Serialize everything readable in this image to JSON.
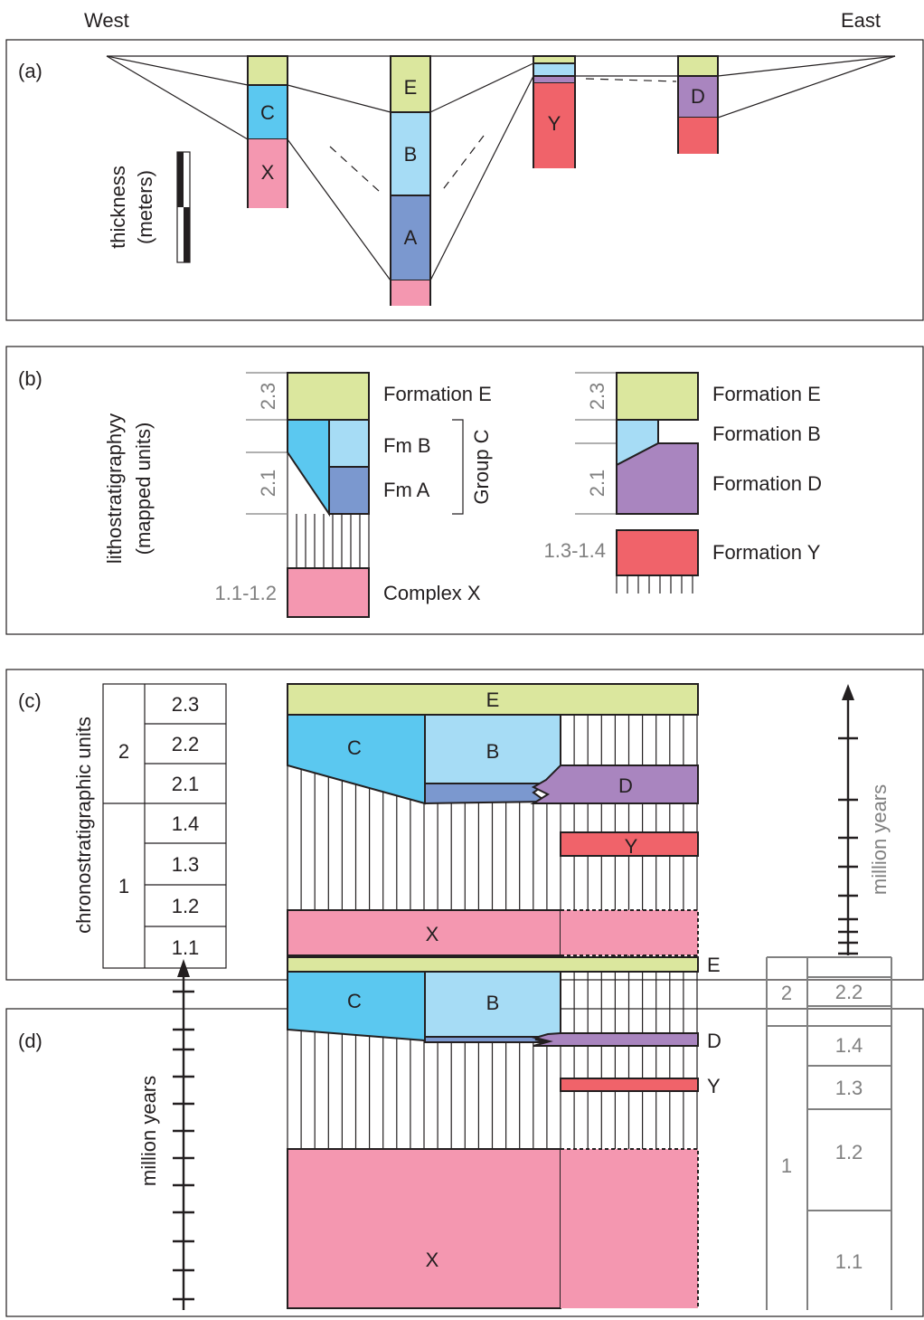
{
  "header": {
    "west": "West",
    "east": "East"
  },
  "colors": {
    "E": "#dbe79e",
    "C": "#5bc8f0",
    "B": "#a6dcf5",
    "A": "#7b98cf",
    "X": "#f497b0",
    "Y": "#f0636a",
    "D": "#a985bf",
    "frame": "#231f20",
    "grey": "#808080"
  },
  "panel_a": {
    "tag": "(a)",
    "scale_label_1": "thickness",
    "scale_label_2": "(meters)",
    "labels": {
      "C": "C",
      "X": "X",
      "E": "E",
      "B": "B",
      "A": "A",
      "Y": "Y",
      "D": "D"
    }
  },
  "panel_b": {
    "tag": "(b)",
    "axis_label_1": "lithostratigraphyy",
    "axis_label_2": "(mapped units)",
    "left": {
      "age_23": "2.3",
      "age_21": "2.1",
      "age_x": "1.1-1.2",
      "formation_e": "Formation E",
      "fm_b": "Fm B",
      "fm_a": "Fm A",
      "group_c": "Group C",
      "complex_x": "Complex X"
    },
    "right": {
      "age_23": "2.3",
      "age_21": "2.1",
      "age_y": "1.3-1.4",
      "formation_e": "Formation E",
      "formation_b": "Formation B",
      "formation_d": "Formation D",
      "formation_y": "Formation Y"
    }
  },
  "panel_c": {
    "tag": "(c)",
    "axis_label": "chronostratigraphic units",
    "major": [
      "2",
      "1"
    ],
    "stages": [
      "2.3",
      "2.2",
      "2.1",
      "1.4",
      "1.3",
      "1.2",
      "1.1"
    ],
    "units": {
      "E": "E",
      "C": "C",
      "B": "B",
      "D": "D",
      "Y": "Y",
      "X": "X"
    },
    "time_label": "million years"
  },
  "panel_d": {
    "tag": "(d)",
    "time_label": "million years",
    "units": {
      "C": "C",
      "B": "B",
      "X": "X"
    },
    "side_labels": {
      "E": "E",
      "D": "D",
      "Y": "Y"
    },
    "major": [
      "2",
      "1"
    ],
    "stages": [
      "2.2",
      "1.4",
      "1.3",
      "1.2",
      "1.1"
    ]
  }
}
